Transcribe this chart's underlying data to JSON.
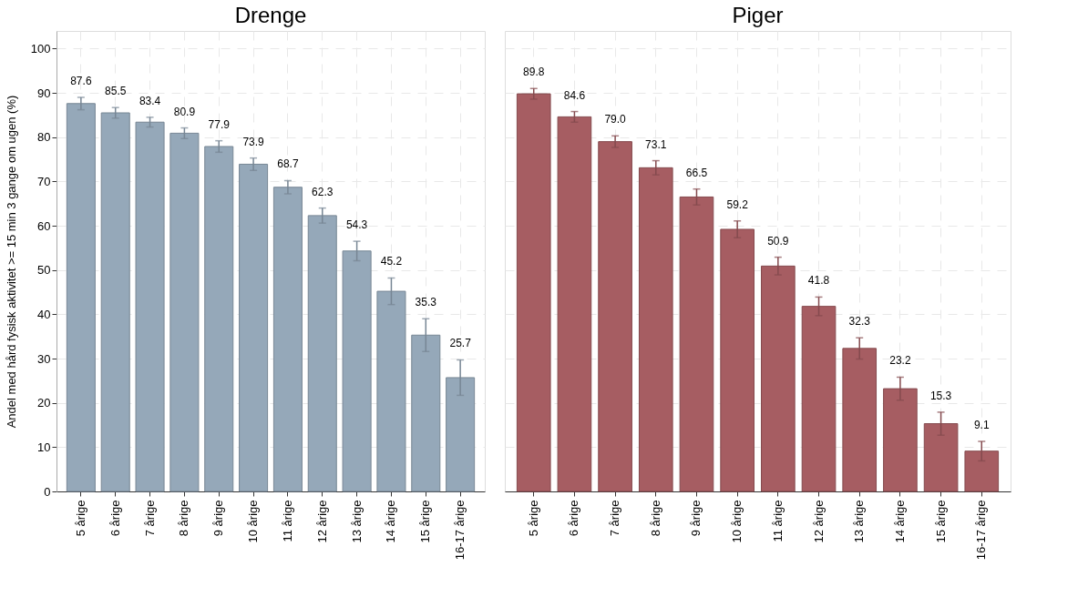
{
  "chart_data": [
    {
      "type": "bar",
      "title": "Drenge",
      "ylabel": "Andel med hård fysisk aktivitet >= 15 min 3 gange om ugen (%)",
      "categories": [
        "5 årige",
        "6 årige",
        "7 årige",
        "8 årige",
        "9 årige",
        "10 årige",
        "11 årige",
        "12 årige",
        "13 årige",
        "14 årige",
        "15 årige",
        "16-17 årige"
      ],
      "values": [
        87.6,
        85.5,
        83.4,
        80.9,
        77.9,
        73.9,
        68.7,
        62.3,
        54.3,
        45.2,
        35.3,
        25.7
      ],
      "errors": [
        1.4,
        1.2,
        1.1,
        1.2,
        1.3,
        1.4,
        1.5,
        1.7,
        2.2,
        3.0,
        3.7,
        4.0
      ],
      "value_labels": [
        "87.6",
        "85.5",
        "83.4",
        "80.9",
        "77.9",
        "73.9",
        "68.7",
        "62.3",
        "54.3",
        "45.2",
        "35.3",
        "25.7"
      ],
      "color": "#95a8b9",
      "ylim": [
        0,
        104
      ],
      "yticks": [
        0,
        10,
        20,
        30,
        40,
        50,
        60,
        70,
        80,
        90,
        100
      ],
      "grid": true
    },
    {
      "type": "bar",
      "title": "Piger",
      "categories": [
        "5 årige",
        "6 årige",
        "7 årige",
        "8 årige",
        "9 årige",
        "10 årige",
        "11 årige",
        "12 årige",
        "13 årige",
        "14 årige",
        "15 årige",
        "16-17 årige"
      ],
      "values": [
        89.8,
        84.6,
        79.0,
        73.1,
        66.5,
        59.2,
        50.9,
        41.8,
        32.3,
        23.2,
        15.3,
        9.1
      ],
      "errors": [
        1.2,
        1.2,
        1.3,
        1.6,
        1.8,
        1.9,
        2.0,
        2.1,
        2.4,
        2.6,
        2.6,
        2.2
      ],
      "value_labels": [
        "89.8",
        "84.6",
        "79.0",
        "73.1",
        "66.5",
        "59.2",
        "50.9",
        "41.8",
        "32.3",
        "23.2",
        "15.3",
        "9.1"
      ],
      "color": "#a65d62",
      "ylim": [
        0,
        104
      ],
      "yticks": [
        0,
        10,
        20,
        30,
        40,
        50,
        60,
        70,
        80,
        90,
        100
      ],
      "grid": true,
      "tick_labels": "x"
    }
  ]
}
